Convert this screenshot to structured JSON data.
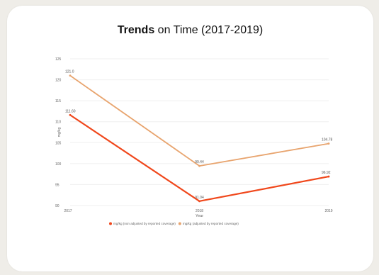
{
  "chart_data": {
    "type": "line",
    "title_bold": "Trends",
    "title_rest": " on Time (2017-2019)",
    "xlabel": "Year",
    "ylabel": "mg/kg",
    "ylim": [
      90,
      125
    ],
    "yticks": [
      90,
      95,
      100,
      105,
      110,
      115,
      120,
      125
    ],
    "categories": [
      "2017",
      "2018",
      "2019"
    ],
    "series": [
      {
        "name": "mg/kg (non adjusted by reported coverage)",
        "values": [
          111.6,
          91.04,
          96.92
        ],
        "labels": [
          "111.60",
          "91.04",
          "96.92"
        ],
        "color": "#f0471b"
      },
      {
        "name": "mg/kg (adjusted by reported coverage)",
        "values": [
          121.0,
          99.44,
          104.78
        ],
        "labels": [
          "121.0",
          "99.44",
          "104.78"
        ],
        "color": "#e8a46e"
      }
    ],
    "legend_position": "bottom"
  }
}
